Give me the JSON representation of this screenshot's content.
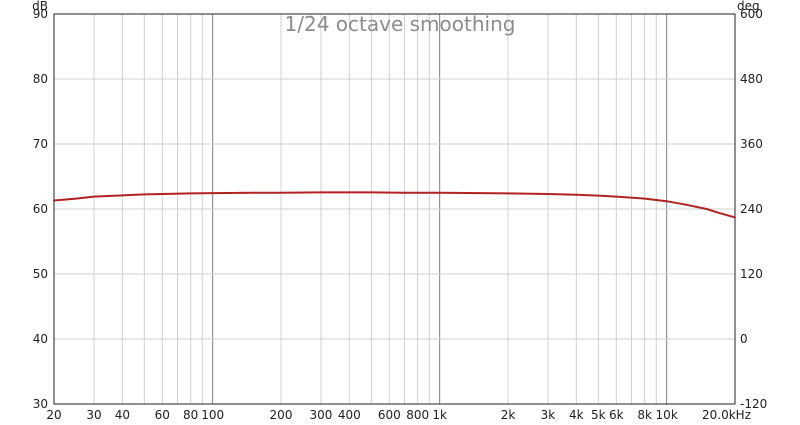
{
  "chart_data": {
    "type": "line",
    "title": "1/24 octave smoothing",
    "x_scale": "log",
    "xlim": [
      20,
      20000
    ],
    "y_left_unit": "dB",
    "y_right_unit": "deg",
    "ylim": [
      30,
      90
    ],
    "y_right_lim": [
      -120,
      600
    ],
    "x_ticks": [
      {
        "value": 20,
        "label": "20"
      },
      {
        "value": 30,
        "label": "30"
      },
      {
        "value": 40,
        "label": "40"
      },
      {
        "value": 60,
        "label": "60"
      },
      {
        "value": 80,
        "label": "80"
      },
      {
        "value": 100,
        "label": "100"
      },
      {
        "value": 200,
        "label": "200"
      },
      {
        "value": 300,
        "label": "300"
      },
      {
        "value": 400,
        "label": "400"
      },
      {
        "value": 600,
        "label": "600"
      },
      {
        "value": 800,
        "label": "800"
      },
      {
        "value": 1000,
        "label": "1k"
      },
      {
        "value": 2000,
        "label": "2k"
      },
      {
        "value": 3000,
        "label": "3k"
      },
      {
        "value": 4000,
        "label": "4k"
      },
      {
        "value": 5000,
        "label": "5k"
      },
      {
        "value": 6000,
        "label": "6k"
      },
      {
        "value": 8000,
        "label": "8k"
      },
      {
        "value": 10000,
        "label": "10k"
      },
      {
        "value": 20000,
        "label": "20.0kHz"
      }
    ],
    "y_left_ticks": [
      30,
      40,
      50,
      60,
      70,
      80,
      90
    ],
    "y_right_ticks": [
      -120,
      0,
      120,
      240,
      360,
      480,
      600
    ],
    "grid": true,
    "colors": {
      "series": "#b22222",
      "grid_minor": "#d0d0d0",
      "grid_major": "#808080",
      "axis": "#222222"
    },
    "series": [
      {
        "x": [
          20,
          25,
          30,
          40,
          50,
          60,
          80,
          100,
          150,
          200,
          300,
          400,
          500,
          700,
          1000,
          1500,
          2000,
          3000,
          4000,
          5000,
          6000,
          8000,
          10000,
          12000,
          15000,
          17000,
          20000
        ],
        "y": [
          61.3,
          61.6,
          61.9,
          62.1,
          62.25,
          62.3,
          62.4,
          62.45,
          62.5,
          62.5,
          62.55,
          62.55,
          62.55,
          62.5,
          62.5,
          62.45,
          62.4,
          62.3,
          62.2,
          62.05,
          61.9,
          61.6,
          61.2,
          60.7,
          60.0,
          59.4,
          58.7
        ]
      }
    ]
  }
}
